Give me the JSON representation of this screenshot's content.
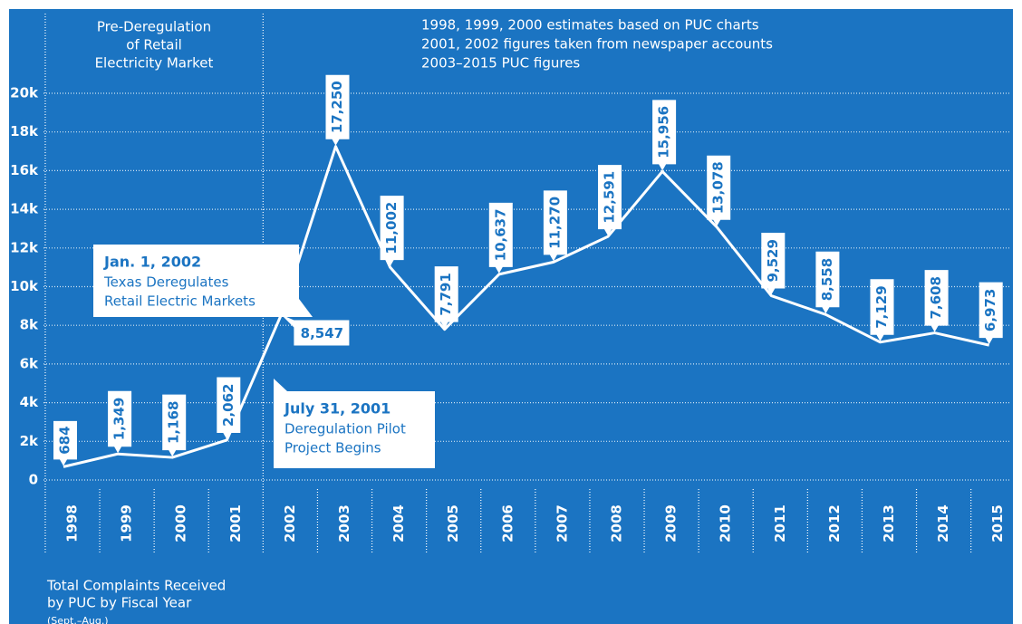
{
  "chart_data": {
    "type": "line",
    "categories": [
      "1998",
      "1999",
      "2000",
      "2001",
      "2002",
      "2003",
      "2004",
      "2005",
      "2006",
      "2007",
      "2008",
      "2009",
      "2010",
      "2011",
      "2012",
      "2013",
      "2014",
      "2015"
    ],
    "values": [
      684,
      1349,
      1168,
      2062,
      8547,
      17250,
      11002,
      7791,
      10637,
      11270,
      12591,
      15956,
      13078,
      9529,
      8558,
      7129,
      7608,
      6973
    ],
    "value_labels": [
      "684",
      "1,349",
      "1,168",
      "2,062",
      "8,547",
      "17,250",
      "11,002",
      "7,791",
      "10,637",
      "11,270",
      "12,591",
      "15,956",
      "13,078",
      "9,529",
      "8,558",
      "7,129",
      "7,608",
      "6,973"
    ],
    "color": "#ffffff",
    "ylim": [
      0,
      20000
    ],
    "yticks": [
      0,
      {
        "value": 2000,
        "label": "2k"
      },
      {
        "value": 4000,
        "label": "4k"
      },
      {
        "value": 6000,
        "label": "6k"
      },
      {
        "value": 8000,
        "label": "8k"
      },
      {
        "value": 10000,
        "label": "10k"
      },
      {
        "value": 12000,
        "label": "12k"
      },
      {
        "value": 14000,
        "label": "14k"
      },
      {
        "value": 16000,
        "label": "16k"
      },
      {
        "value": 18000,
        "label": "18k"
      },
      {
        "value": 20000,
        "label": "20k"
      }
    ],
    "grid": true,
    "annotations": {
      "pre_deregulation": [
        "Pre-Deregulation",
        "of Retail",
        "Electricity Market"
      ],
      "notes": [
        "1998, 1999, 2000 estimates based on PUC charts",
        "2001, 2002 figures taken from newspaper accounts",
        "2003–2015 PUC figures"
      ],
      "callouts": [
        {
          "heading": "Jan. 1, 2002",
          "lines": [
            "Texas Deregulates",
            "Retail Electric Markets"
          ]
        },
        {
          "heading": "July 31, 2001",
          "lines": [
            "Deregulation Pilot",
            "Project Begins"
          ]
        }
      ],
      "footer": [
        "Total Complaints Received",
        "by PUC by Fiscal Year",
        "(Sept.–Aug.)"
      ]
    }
  }
}
